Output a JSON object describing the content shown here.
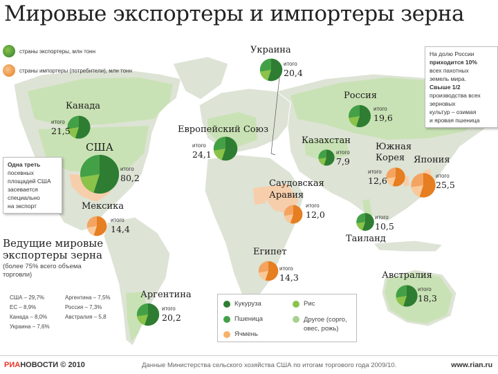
{
  "title": "Мировые экспортеры и импортеры зерна",
  "legend_top": {
    "exporters": "страны экспортеры, млн тонн",
    "importers": "страны импортеры (потребители), млн тонн"
  },
  "colors": {
    "land": "#dde3d5",
    "sea": "#ffffff",
    "export_land": "#c9e2b5",
    "import_land": "#f7ceab",
    "export_dark": "#2e7d32",
    "export_mid": "#43a047",
    "export_light": "#8bc34a",
    "import_dark": "#e67e22",
    "import_light": "#f4a460"
  },
  "countries": [
    {
      "name": "Украина",
      "caption": "итого",
      "value": "20,4",
      "kind": "export"
    },
    {
      "name": "Канада",
      "caption": "итого",
      "value": "21,5",
      "kind": "export"
    },
    {
      "name": "Россия",
      "caption": "итого",
      "value": "19,6",
      "kind": "export"
    },
    {
      "name": "Европейский Союз",
      "caption": "итого",
      "value": "24,1",
      "kind": "export"
    },
    {
      "name": "США",
      "caption": "итого",
      "value": "80,2",
      "kind": "export"
    },
    {
      "name": "Казахстан",
      "caption": "итого",
      "value": "7,9",
      "kind": "export"
    },
    {
      "name": "Южная Корея",
      "caption": "итого",
      "value": "12,6",
      "kind": "import"
    },
    {
      "name": "Япония",
      "caption": "итого",
      "value": "25,5",
      "kind": "import"
    },
    {
      "name": "Саудовская Аравия",
      "caption": "итого",
      "value": "12,0",
      "kind": "import"
    },
    {
      "name": "Мексика",
      "caption": "итого",
      "value": "14,4",
      "kind": "import"
    },
    {
      "name": "Таиланд",
      "caption": "итого",
      "value": "10,5",
      "kind": "export"
    },
    {
      "name": "Египет",
      "caption": "итого",
      "value": "14,3",
      "kind": "import"
    },
    {
      "name": "Австралия",
      "caption": "итого",
      "value": "18,3",
      "kind": "export"
    },
    {
      "name": "Аргентина",
      "caption": "итого",
      "value": "20,2",
      "kind": "export"
    }
  ],
  "notes": {
    "russia_line1": "На долю России",
    "russia_line2": "приходится 10%",
    "russia_line3": "всех пахотных",
    "russia_line4": "земель мира.",
    "russia_line5": "Свыше 1/2",
    "russia_line6": "производства всех",
    "russia_line7": "зерновых",
    "russia_line8": "культур – озимая",
    "russia_line9": "и яровая пшеница",
    "usa_line1": "Одна треть",
    "usa_line2": "посевных",
    "usa_line3": "площадей США",
    "usa_line4": "засевается",
    "usa_line5": "специально",
    "usa_line6": "на экспорт"
  },
  "exporters_block": {
    "heading_line1": "Ведущие мировые",
    "heading_line2": "экспортеры зерна",
    "sub_line1": "(более 75% всего объема",
    "sub_line2": "торговли)",
    "items": [
      "США – 29,7%",
      "ЕС – 8,9%",
      "Канада – 8,0%",
      "Украина – 7,6%",
      "Аргентина – 7,5%",
      "Россия – 7,3%",
      "Австралия – 5,8"
    ]
  },
  "legend_bottom": {
    "items": [
      "Кукуруза",
      "Пшеница",
      "Ячмень",
      "Рис",
      "Другое (сорго, овес, рожь)"
    ],
    "colors": [
      "#2e7d32",
      "#43a047",
      "#f6b26b",
      "#8bc34a",
      "#a9d18e"
    ]
  },
  "footer": {
    "logo_a": "РИА",
    "logo_b": "НОВОСТИ",
    "copyright": "© 2010",
    "source": "Данные Министерства сельского хозяйства США по итогам торгового года 2009/10.",
    "site": "www.rian.ru"
  }
}
